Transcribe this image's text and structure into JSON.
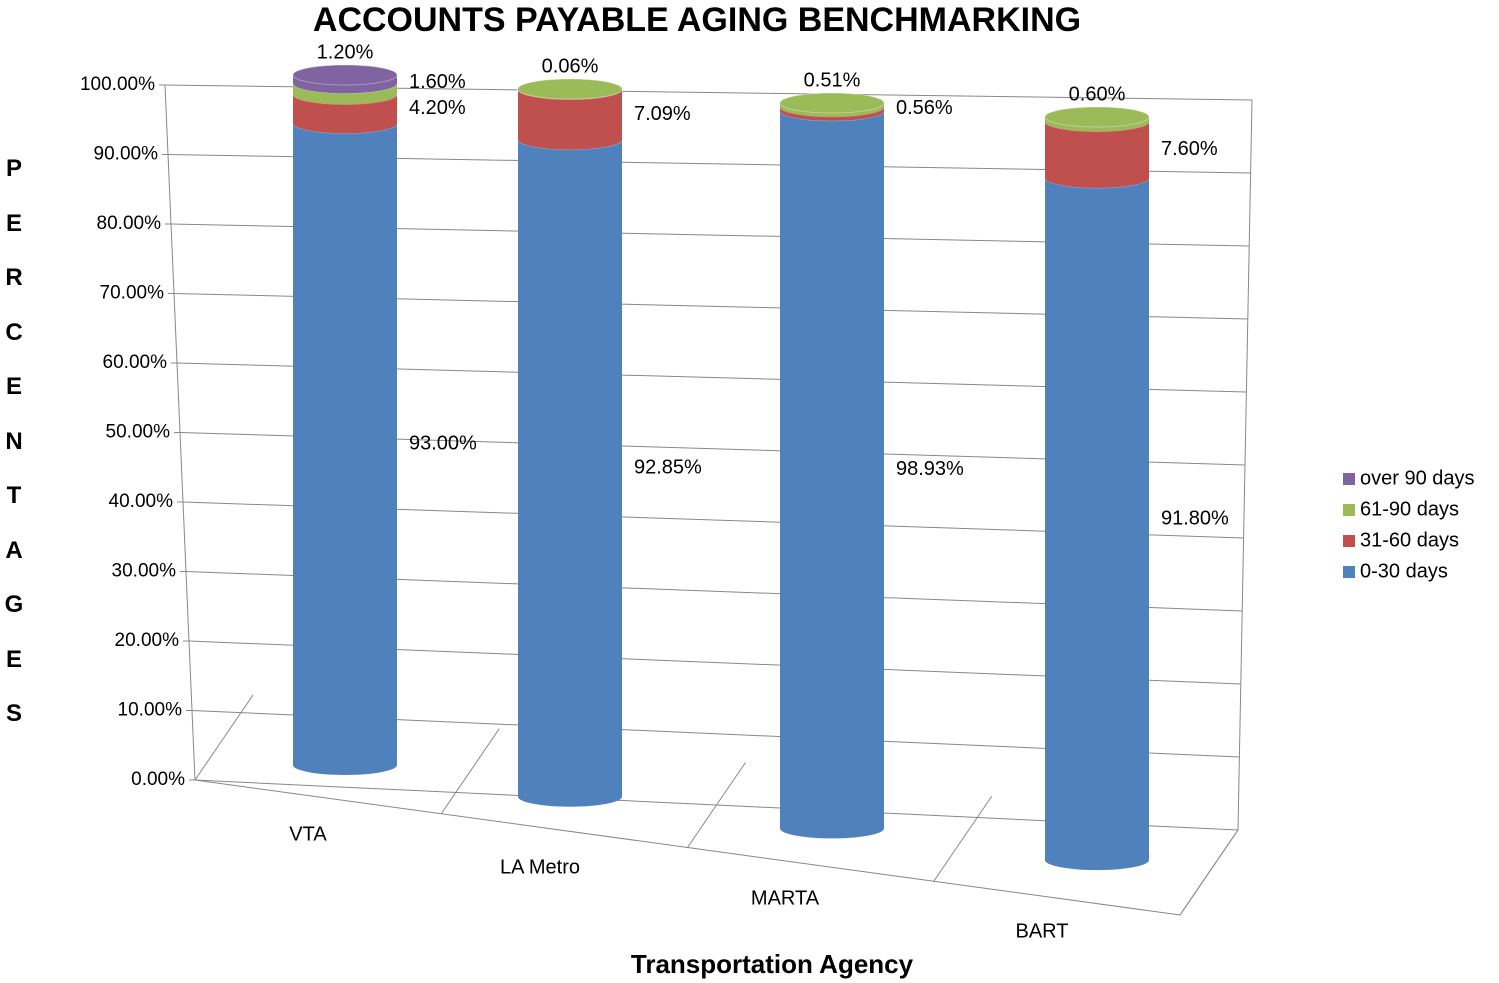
{
  "chart_data": {
    "type": "cylinder-stacked",
    "title": "ACCOUNTS PAYABLE AGING BENCHMARKING",
    "x_label": "Transportation Agency",
    "y_label": "PERCENTAGES",
    "categories": [
      "VTA",
      "LA Metro",
      "MARTA",
      "BART"
    ],
    "series": [
      {
        "name": "0-30 days",
        "color": "#4f81bd",
        "values": [
          93.0,
          92.85,
          98.93,
          91.8
        ],
        "value_labels": [
          "93.00%",
          "92.85%",
          "98.93%",
          "91.80%"
        ]
      },
      {
        "name": "31-60 days",
        "color": "#c0504d",
        "values": [
          4.2,
          7.09,
          0.56,
          7.6
        ],
        "value_labels": [
          "4.20%",
          "7.09%",
          "0.56%",
          "7.60%"
        ]
      },
      {
        "name": "61-90 days",
        "color": "#9bbb59",
        "values": [
          1.6,
          0.06,
          0.51,
          0.6
        ],
        "value_labels": [
          "1.60%",
          "0.06%",
          "0.51%",
          "0.60%"
        ]
      },
      {
        "name": "over 90 days",
        "color": "#8064a2",
        "values": [
          1.2,
          null,
          null,
          null
        ],
        "value_labels": [
          "1.20%",
          null,
          null,
          null
        ]
      }
    ],
    "ylim": [
      0,
      100
    ],
    "yticks": [
      {
        "value": 0,
        "label": "0.00%"
      },
      {
        "value": 10,
        "label": "10.00%"
      },
      {
        "value": 20,
        "label": "20.00%"
      },
      {
        "value": 30,
        "label": "30.00%"
      },
      {
        "value": 40,
        "label": "40.00%"
      },
      {
        "value": 50,
        "label": "50.00%"
      },
      {
        "value": 60,
        "label": "60.00%"
      },
      {
        "value": 70,
        "label": "70.00%"
      },
      {
        "value": 80,
        "label": "80.00%"
      },
      {
        "value": 90,
        "label": "90.00%"
      },
      {
        "value": 100,
        "label": "100.00%"
      }
    ],
    "grid": true,
    "legend": "right"
  }
}
